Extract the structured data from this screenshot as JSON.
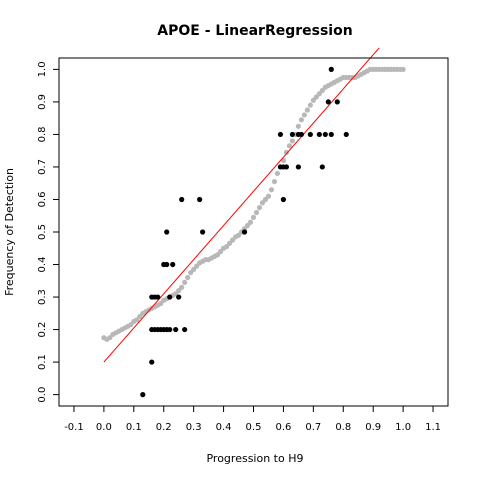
{
  "chart_data": {
    "type": "scatter",
    "title": "APOE - LinearRegression",
    "xlabel": "Progression to H9",
    "ylabel": "Frequency of Detection",
    "xlim": [
      -0.15,
      1.15
    ],
    "ylim": [
      -0.035,
      1.035
    ],
    "xticks": [
      "-0.1",
      "0.0",
      "0.1",
      "0.2",
      "0.3",
      "0.4",
      "0.5",
      "0.6",
      "0.7",
      "0.8",
      "0.9",
      "1.0",
      "1.1"
    ],
    "yticks": [
      "0.0",
      "0.1",
      "0.2",
      "0.3",
      "0.4",
      "0.5",
      "0.6",
      "0.7",
      "0.8",
      "0.9",
      "1.0"
    ],
    "grid": false,
    "colors": {
      "points": "#000000",
      "smooth": "#b8b8b8",
      "fit": "#ff0000"
    },
    "series": [
      {
        "kind": "smoothed",
        "points": [
          [
            0.0,
            0.175
          ],
          [
            0.01,
            0.17
          ],
          [
            0.02,
            0.175
          ],
          [
            0.03,
            0.185
          ],
          [
            0.04,
            0.19
          ],
          [
            0.05,
            0.195
          ],
          [
            0.06,
            0.2
          ],
          [
            0.07,
            0.205
          ],
          [
            0.08,
            0.21
          ],
          [
            0.09,
            0.215
          ],
          [
            0.1,
            0.225
          ],
          [
            0.11,
            0.23
          ],
          [
            0.12,
            0.24
          ],
          [
            0.13,
            0.25
          ],
          [
            0.14,
            0.255
          ],
          [
            0.15,
            0.26
          ],
          [
            0.16,
            0.265
          ],
          [
            0.17,
            0.27
          ],
          [
            0.18,
            0.275
          ],
          [
            0.19,
            0.28
          ],
          [
            0.2,
            0.29
          ],
          [
            0.21,
            0.295
          ],
          [
            0.22,
            0.3
          ],
          [
            0.23,
            0.305
          ],
          [
            0.24,
            0.31
          ],
          [
            0.25,
            0.32
          ],
          [
            0.26,
            0.33
          ],
          [
            0.27,
            0.345
          ],
          [
            0.28,
            0.36
          ],
          [
            0.29,
            0.375
          ],
          [
            0.3,
            0.385
          ],
          [
            0.31,
            0.395
          ],
          [
            0.32,
            0.405
          ],
          [
            0.33,
            0.41
          ],
          [
            0.34,
            0.415
          ],
          [
            0.35,
            0.415
          ],
          [
            0.36,
            0.42
          ],
          [
            0.37,
            0.425
          ],
          [
            0.38,
            0.43
          ],
          [
            0.39,
            0.44
          ],
          [
            0.4,
            0.45
          ],
          [
            0.41,
            0.455
          ],
          [
            0.42,
            0.465
          ],
          [
            0.43,
            0.475
          ],
          [
            0.44,
            0.485
          ],
          [
            0.45,
            0.49
          ],
          [
            0.46,
            0.5
          ],
          [
            0.47,
            0.51
          ],
          [
            0.48,
            0.52
          ],
          [
            0.49,
            0.53
          ],
          [
            0.5,
            0.545
          ],
          [
            0.51,
            0.56
          ],
          [
            0.52,
            0.575
          ],
          [
            0.53,
            0.59
          ],
          [
            0.54,
            0.6
          ],
          [
            0.55,
            0.61
          ],
          [
            0.56,
            0.63
          ],
          [
            0.57,
            0.655
          ],
          [
            0.58,
            0.68
          ],
          [
            0.59,
            0.7
          ],
          [
            0.6,
            0.72
          ],
          [
            0.61,
            0.745
          ],
          [
            0.62,
            0.765
          ],
          [
            0.63,
            0.78
          ],
          [
            0.64,
            0.8
          ],
          [
            0.65,
            0.825
          ],
          [
            0.66,
            0.845
          ],
          [
            0.67,
            0.86
          ],
          [
            0.68,
            0.875
          ],
          [
            0.69,
            0.89
          ],
          [
            0.7,
            0.905
          ],
          [
            0.71,
            0.915
          ],
          [
            0.72,
            0.925
          ],
          [
            0.73,
            0.935
          ],
          [
            0.74,
            0.945
          ],
          [
            0.75,
            0.95
          ],
          [
            0.76,
            0.955
          ],
          [
            0.77,
            0.96
          ],
          [
            0.78,
            0.965
          ],
          [
            0.79,
            0.97
          ],
          [
            0.8,
            0.975
          ],
          [
            0.81,
            0.975
          ],
          [
            0.82,
            0.975
          ],
          [
            0.83,
            0.975
          ],
          [
            0.84,
            0.975
          ],
          [
            0.85,
            0.98
          ],
          [
            0.86,
            0.985
          ],
          [
            0.87,
            0.99
          ],
          [
            0.88,
            0.995
          ],
          [
            0.89,
            1.0
          ],
          [
            0.9,
            1.0
          ],
          [
            0.91,
            1.0
          ],
          [
            0.92,
            1.0
          ],
          [
            0.93,
            1.0
          ],
          [
            0.94,
            1.0
          ],
          [
            0.95,
            1.0
          ],
          [
            0.96,
            1.0
          ],
          [
            0.97,
            1.0
          ],
          [
            0.98,
            1.0
          ],
          [
            0.99,
            1.0
          ],
          [
            1.0,
            1.0
          ]
        ]
      },
      {
        "kind": "observed",
        "points": [
          [
            0.13,
            0.0
          ],
          [
            0.16,
            0.1
          ],
          [
            0.16,
            0.2
          ],
          [
            0.17,
            0.2
          ],
          [
            0.18,
            0.2
          ],
          [
            0.19,
            0.2
          ],
          [
            0.2,
            0.2
          ],
          [
            0.21,
            0.2
          ],
          [
            0.22,
            0.2
          ],
          [
            0.24,
            0.2
          ],
          [
            0.27,
            0.2
          ],
          [
            0.16,
            0.3
          ],
          [
            0.17,
            0.3
          ],
          [
            0.18,
            0.3
          ],
          [
            0.22,
            0.3
          ],
          [
            0.25,
            0.3
          ],
          [
            0.2,
            0.4
          ],
          [
            0.21,
            0.4
          ],
          [
            0.23,
            0.4
          ],
          [
            0.21,
            0.5
          ],
          [
            0.33,
            0.5
          ],
          [
            0.47,
            0.5
          ],
          [
            0.26,
            0.6
          ],
          [
            0.32,
            0.6
          ],
          [
            0.6,
            0.6
          ],
          [
            0.59,
            0.7
          ],
          [
            0.6,
            0.7
          ],
          [
            0.61,
            0.7
          ],
          [
            0.65,
            0.7
          ],
          [
            0.73,
            0.7
          ],
          [
            0.59,
            0.8
          ],
          [
            0.63,
            0.8
          ],
          [
            0.65,
            0.8
          ],
          [
            0.66,
            0.8
          ],
          [
            0.69,
            0.8
          ],
          [
            0.72,
            0.8
          ],
          [
            0.74,
            0.8
          ],
          [
            0.76,
            0.8
          ],
          [
            0.81,
            0.8
          ],
          [
            0.75,
            0.9
          ],
          [
            0.78,
            0.9
          ],
          [
            0.76,
            1.0
          ]
        ]
      }
    ],
    "fit_line": {
      "intercept": 0.1,
      "slope": 1.05,
      "x": [
        0.0,
        0.92
      ]
    }
  }
}
